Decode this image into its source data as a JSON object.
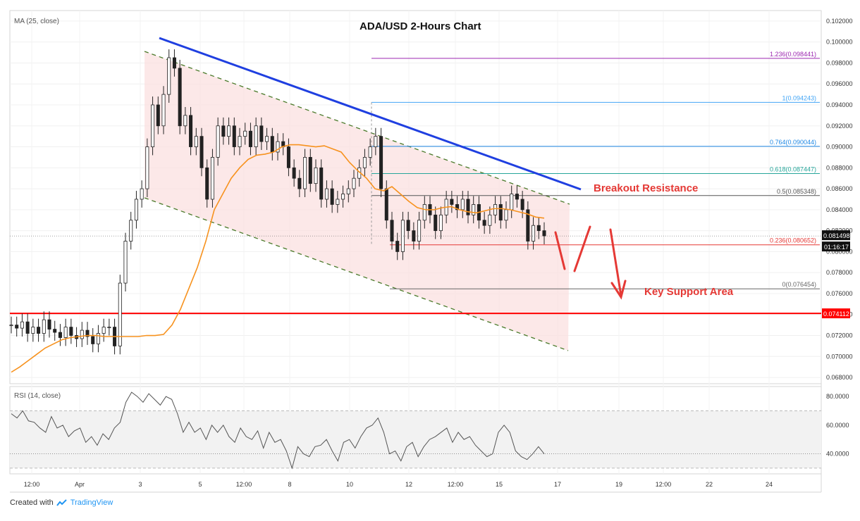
{
  "chart_data": [
    {
      "type": "candlestick",
      "title": "ADA/USD 2-Hours Chart",
      "indicator_label": "MA (25, close)",
      "y_ticks": [
        "0.102000",
        "0.100000",
        "0.098000",
        "0.096000",
        "0.094000",
        "0.092000",
        "0.090000",
        "0.088000",
        "0.086000",
        "0.084000",
        "0.082000",
        "0.080000",
        "0.078000",
        "0.076000",
        "0.074000",
        "0.072000",
        "0.070000",
        "0.068000"
      ],
      "ylim": [
        0.0674,
        0.103
      ],
      "x_ticks": [
        "12:00",
        "Apr",
        "3",
        "5",
        "12:00",
        "8",
        "10",
        "12",
        "12:00",
        "15",
        "17",
        "19",
        "12:00",
        "22",
        "24"
      ],
      "close_series": [
        0.073,
        0.0727,
        0.0733,
        0.0722,
        0.0728,
        0.0722,
        0.0735,
        0.0726,
        0.0723,
        0.0718,
        0.0728,
        0.072,
        0.0717,
        0.0725,
        0.0719,
        0.0712,
        0.0722,
        0.0728,
        0.0728,
        0.071,
        0.077,
        0.081,
        0.083,
        0.085,
        0.086,
        0.09,
        0.094,
        0.092,
        0.095,
        0.0985,
        0.0975,
        0.092,
        0.093,
        0.09,
        0.091,
        0.088,
        0.085,
        0.089,
        0.092,
        0.091,
        0.092,
        0.09,
        0.091,
        0.0915,
        0.09,
        0.092,
        0.0905,
        0.091,
        0.0895,
        0.0905,
        0.09,
        0.088,
        0.087,
        0.086,
        0.089,
        0.0865,
        0.088,
        0.085,
        0.086,
        0.0845,
        0.085,
        0.0855,
        0.086,
        0.087,
        0.088,
        0.089,
        0.09,
        0.091,
        0.086,
        0.083,
        0.081,
        0.08,
        0.083,
        0.082,
        0.081,
        0.083,
        0.0845,
        0.0835,
        0.082,
        0.0835,
        0.085,
        0.0845,
        0.084,
        0.085,
        0.0835,
        0.0845,
        0.083,
        0.0825,
        0.0835,
        0.0845,
        0.083,
        0.084,
        0.0855,
        0.085,
        0.084,
        0.081,
        0.0825,
        0.082,
        0.0815
      ],
      "moving_average": {
        "label": "MA (25, close)",
        "color": "#f7921e",
        "values": [
          0.0685,
          0.069,
          0.0696,
          0.0702,
          0.0708,
          0.0712,
          0.0716,
          0.0718,
          0.0719,
          0.072,
          0.072,
          0.0719,
          0.0719,
          0.0719,
          0.0719,
          0.0719,
          0.072,
          0.072,
          0.0721,
          0.073,
          0.0745,
          0.0765,
          0.0785,
          0.081,
          0.084,
          0.0855,
          0.087,
          0.088,
          0.0888,
          0.0892,
          0.0893,
          0.0895,
          0.09,
          0.0902,
          0.0902,
          0.0901,
          0.09,
          0.0901,
          0.0898,
          0.0895,
          0.0885,
          0.0877,
          0.087,
          0.086,
          0.0858,
          0.0862,
          0.0855,
          0.0848,
          0.0842,
          0.084,
          0.084,
          0.0842,
          0.0843,
          0.084,
          0.0838,
          0.0837,
          0.0839,
          0.0841,
          0.0841,
          0.084,
          0.0838,
          0.0836,
          0.0833,
          0.0832
        ]
      },
      "current_price_tag": "0.081498",
      "countdown_tag": "01:16:17",
      "support_line": {
        "value": 0.074112,
        "label": "0.074112",
        "color": "#ff0000"
      },
      "fib_levels": [
        {
          "ratio": "1.236",
          "value": 0.098441,
          "label": "1.236(0.098441)",
          "color": "#9c27b0"
        },
        {
          "ratio": "1",
          "value": 0.094243,
          "label": "1(0.094243)",
          "color": "#42a5f5"
        },
        {
          "ratio": "0.764",
          "value": 0.090044,
          "label": "0.764(0.090044)",
          "color": "#1e88e5"
        },
        {
          "ratio": "0.618",
          "value": 0.087447,
          "label": "0.618(0.087447)",
          "color": "#26a69a"
        },
        {
          "ratio": "0.5",
          "value": 0.085348,
          "label": "0.5(0.085348)",
          "color": "#555555"
        },
        {
          "ratio": "0.236",
          "value": 0.080652,
          "label": "0.236(0.080652)",
          "color": "#e53935"
        },
        {
          "ratio": "0",
          "value": 0.076454,
          "label": "0(0.076454)",
          "color": "#666666"
        }
      ],
      "annotations": {
        "breakout": "Breakout Resistance",
        "support": "Key Support Area"
      },
      "colors": {
        "trendline": "#1f3fe0",
        "channel_fill": "#fbe0e0",
        "channel_dash": "#4a7a2a",
        "arrows": "#e53935",
        "annotation_text": "#e53935"
      }
    },
    {
      "type": "line",
      "indicator_label": "RSI (14, close)",
      "y_ticks": [
        "80.0000",
        "60.0000",
        "40.0000"
      ],
      "ylim": [
        27,
        86
      ],
      "band": [
        30,
        70
      ],
      "values": [
        68,
        65,
        70,
        63,
        62,
        58,
        55,
        66,
        58,
        60,
        52,
        56,
        58,
        48,
        52,
        46,
        54,
        50,
        58,
        62,
        76,
        83,
        80,
        76,
        82,
        78,
        74,
        80,
        78,
        68,
        55,
        62,
        55,
        58,
        50,
        60,
        55,
        60,
        52,
        48,
        58,
        52,
        50,
        56,
        44,
        55,
        48,
        50,
        42,
        30,
        45,
        40,
        38,
        45,
        46,
        50,
        42,
        35,
        48,
        50,
        44,
        52,
        58,
        60,
        65,
        55,
        40,
        42,
        35,
        45,
        48,
        38,
        45,
        50,
        52,
        55,
        58,
        48,
        55,
        50,
        52,
        46,
        42,
        38,
        40,
        55,
        60,
        55,
        42,
        38,
        36,
        40,
        45,
        40
      ]
    }
  ],
  "footer": {
    "created_with": "Created with",
    "brand": "TradingView"
  }
}
